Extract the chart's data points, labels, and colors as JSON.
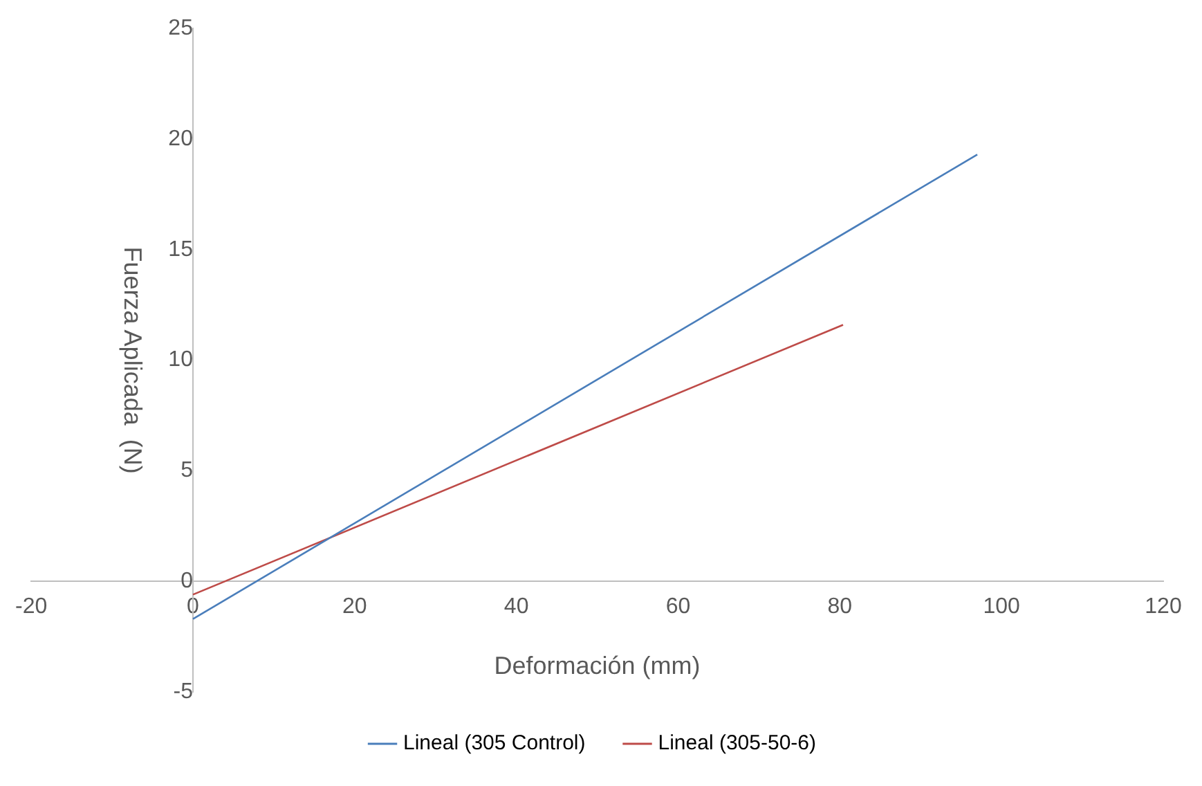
{
  "chart_data": {
    "type": "line",
    "xlabel": "Deformación (mm)",
    "ylabel": "Fuerza Aplicada  (N)",
    "xlim": [
      -20,
      120
    ],
    "xticks": [
      -20,
      0,
      20,
      40,
      60,
      80,
      100,
      120
    ],
    "ylim": [
      -5,
      25
    ],
    "yticks": [
      -5,
      0,
      5,
      10,
      15,
      20,
      25
    ],
    "grid": false,
    "legend": "bottom",
    "marker": "none",
    "line_style": "solid",
    "series": [
      {
        "name": "Lineal (305 Control)",
        "color": "#4a7ebb",
        "x": [
          0,
          97
        ],
        "values": [
          -1.7,
          19.3
        ]
      },
      {
        "name": "Lineal (305-50-6)",
        "color": "#be4b48",
        "x": [
          0,
          80.4
        ],
        "values": [
          -0.6,
          11.6
        ]
      }
    ]
  }
}
